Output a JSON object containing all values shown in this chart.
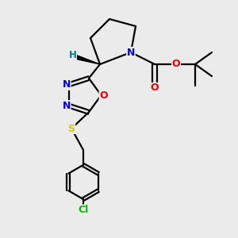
{
  "bg_color": "#ebebeb",
  "atom_colors": {
    "N": "#0000ee",
    "O": "#ee0000",
    "S": "#cccc00",
    "Cl": "#00bb00",
    "C": "#000000",
    "H": "#008080"
  },
  "bond_color": "#000000"
}
